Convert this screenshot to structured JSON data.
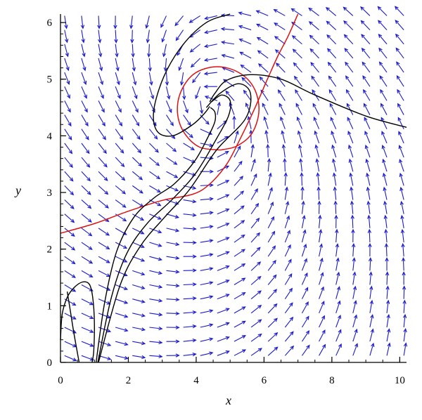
{
  "chart_data": {
    "type": "phase-portrait",
    "xlabel": "x",
    "ylabel": "y",
    "xlim": [
      0,
      10.2
    ],
    "ylim": [
      0,
      6.15
    ],
    "x_ticks": [
      0,
      2,
      4,
      6,
      8,
      10
    ],
    "y_ticks": [
      0,
      1,
      2,
      3,
      4,
      5,
      6
    ],
    "equilibrium": {
      "x": 4.35,
      "y": 4.55
    },
    "colors": {
      "vector_field": "#1a1acc",
      "trajectory": "#000000",
      "nullcline": "#dd1111",
      "axis": "#000000"
    },
    "nullclines": [
      {
        "name": "",
        "points": [
          [
            0,
            2.28
          ],
          [
            1,
            2.45
          ],
          [
            2,
            2.67
          ],
          [
            3,
            2.86
          ],
          [
            3.9,
            2.97
          ],
          [
            4.4,
            3.15
          ],
          [
            4.9,
            3.5
          ],
          [
            5.3,
            3.95
          ],
          [
            5.7,
            4.45
          ],
          [
            6.1,
            5.0
          ],
          [
            6.4,
            5.4
          ],
          [
            6.7,
            5.75
          ],
          [
            7.0,
            6.15
          ]
        ]
      },
      {
        "name": "",
        "points": [
          [
            4.72,
            3.75
          ],
          [
            4.1,
            3.8
          ],
          [
            3.65,
            4.05
          ],
          [
            3.45,
            4.4
          ],
          [
            3.55,
            4.78
          ],
          [
            3.95,
            5.1
          ],
          [
            4.6,
            5.22
          ],
          [
            5.25,
            5.12
          ],
          [
            5.7,
            4.85
          ],
          [
            5.85,
            4.45
          ],
          [
            5.65,
            4.05
          ],
          [
            5.2,
            3.82
          ],
          [
            4.72,
            3.75
          ]
        ]
      }
    ],
    "trajectories": [
      {
        "points": [
          [
            0,
            0.4
          ],
          [
            0.05,
            0.85
          ],
          [
            0.2,
            1.15
          ],
          [
            0.4,
            1.32
          ],
          [
            0.65,
            1.42
          ],
          [
            0.85,
            1.38
          ],
          [
            0.95,
            1.15
          ],
          [
            1.0,
            0.7
          ],
          [
            0.98,
            0.2
          ],
          [
            0.93,
            0
          ]
        ]
      },
      {
        "points": [
          [
            0.55,
            0
          ],
          [
            0.4,
            0.5
          ],
          [
            0.28,
            0.95
          ],
          [
            0.2,
            1.25
          ]
        ]
      },
      {
        "points": [
          [
            1.05,
            0
          ],
          [
            1.3,
            1.05
          ],
          [
            1.65,
            1.95
          ],
          [
            2.15,
            2.55
          ],
          [
            2.75,
            2.9
          ],
          [
            3.35,
            3.15
          ],
          [
            3.95,
            3.55
          ],
          [
            4.35,
            3.98
          ],
          [
            4.55,
            4.25
          ],
          [
            4.55,
            4.42
          ],
          [
            4.42,
            4.5
          ]
        ]
      },
      {
        "points": [
          [
            1.1,
            0
          ],
          [
            1.5,
            1.15
          ],
          [
            1.95,
            1.92
          ],
          [
            2.55,
            2.45
          ],
          [
            3.3,
            2.88
          ],
          [
            4.0,
            3.35
          ],
          [
            4.6,
            3.95
          ],
          [
            4.95,
            4.35
          ],
          [
            5.0,
            4.62
          ],
          [
            4.75,
            4.72
          ],
          [
            4.45,
            4.6
          ]
        ]
      },
      {
        "points": [
          [
            1.12,
            0
          ],
          [
            1.75,
            1.35
          ],
          [
            2.35,
            2.05
          ],
          [
            3.05,
            2.55
          ],
          [
            3.8,
            3.05
          ],
          [
            4.6,
            3.75
          ],
          [
            5.45,
            4.3
          ],
          [
            5.6,
            4.75
          ],
          [
            5.25,
            4.92
          ],
          [
            4.7,
            4.75
          ],
          [
            4.3,
            4.5
          ]
        ]
      },
      {
        "points": [
          [
            10.2,
            4.15
          ],
          [
            9.0,
            4.35
          ],
          [
            7.5,
            4.72
          ],
          [
            6.5,
            5.0
          ],
          [
            5.6,
            5.08
          ],
          [
            4.9,
            4.98
          ],
          [
            4.55,
            4.75
          ],
          [
            4.4,
            4.6
          ]
        ]
      },
      {
        "points": [
          [
            5.0,
            6.15
          ],
          [
            4.3,
            6.0
          ],
          [
            3.6,
            5.6
          ],
          [
            3.05,
            5.05
          ],
          [
            2.75,
            4.45
          ],
          [
            2.85,
            4.08
          ],
          [
            3.3,
            4.0
          ],
          [
            3.9,
            4.2
          ],
          [
            4.25,
            4.4
          ],
          [
            4.4,
            4.52
          ]
        ]
      }
    ]
  }
}
